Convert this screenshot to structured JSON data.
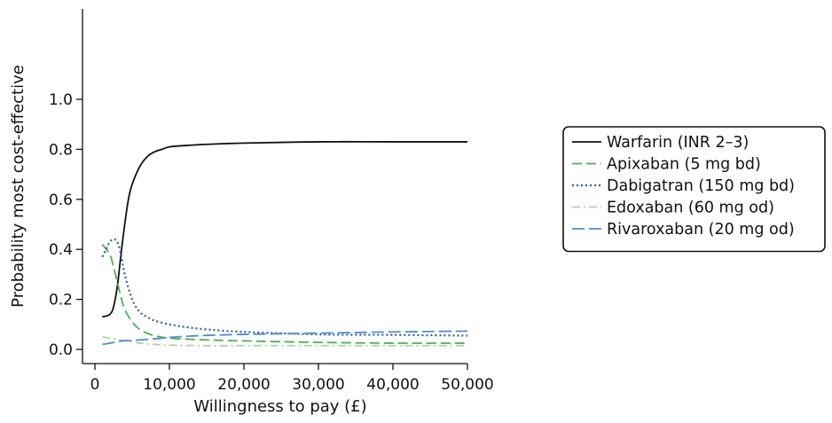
{
  "chart_data": {
    "type": "line",
    "xlabel": "Willingness to pay (£)",
    "ylabel": "Probability most cost-effective",
    "xlim": [
      0,
      50000
    ],
    "ylim": [
      0,
      1.0
    ],
    "x_ticks": [
      0,
      10000,
      20000,
      30000,
      40000,
      50000
    ],
    "x_tick_labels": [
      "0",
      "10,000",
      "20,000",
      "30,000",
      "40,000",
      "50,000"
    ],
    "y_ticks": [
      0,
      0.2,
      0.4,
      0.6,
      0.8,
      1.0
    ],
    "y_tick_labels": [
      "0.0",
      "0.2",
      "0.4",
      "0.6",
      "0.8",
      "1.0"
    ],
    "grid": false,
    "legend_position": "right",
    "series": [
      {
        "name": "Warfarin (INR 2–3)",
        "color": "#111111",
        "dash": "solid",
        "x": [
          1000,
          2000,
          2500,
          3000,
          3500,
          4000,
          4500,
          5000,
          6000,
          7000,
          8000,
          9000,
          10000,
          12000,
          15000,
          20000,
          30000,
          40000,
          50000
        ],
        "y": [
          0.13,
          0.14,
          0.17,
          0.25,
          0.38,
          0.5,
          0.6,
          0.66,
          0.73,
          0.77,
          0.79,
          0.8,
          0.81,
          0.815,
          0.82,
          0.825,
          0.83,
          0.83,
          0.83
        ]
      },
      {
        "name": "Apixaban (5 mg bd)",
        "color": "#4caf50",
        "dash": "long-dash",
        "x": [
          1000,
          2000,
          2500,
          3000,
          3500,
          4000,
          5000,
          6000,
          7000,
          8000,
          10000,
          15000,
          20000,
          30000,
          40000,
          50000
        ],
        "y": [
          0.42,
          0.38,
          0.33,
          0.27,
          0.21,
          0.16,
          0.11,
          0.08,
          0.065,
          0.055,
          0.045,
          0.038,
          0.034,
          0.028,
          0.025,
          0.025
        ]
      },
      {
        "name": "Dabigatran (150 mg bd)",
        "color": "#2a5db0",
        "dash": "dotted",
        "x": [
          1000,
          1500,
          2000,
          2500,
          3000,
          3500,
          4000,
          5000,
          6000,
          7000,
          8000,
          10000,
          12000,
          15000,
          20000,
          30000,
          40000,
          50000
        ],
        "y": [
          0.37,
          0.4,
          0.43,
          0.44,
          0.43,
          0.38,
          0.3,
          0.2,
          0.15,
          0.13,
          0.115,
          0.1,
          0.09,
          0.08,
          0.07,
          0.06,
          0.058,
          0.055
        ]
      },
      {
        "name": "Edoxaban (60 mg od)",
        "color": "#a8d5a0",
        "dash": "dash-dot",
        "x": [
          1000,
          2000,
          3000,
          4000,
          5000,
          6000,
          8000,
          10000,
          15000,
          20000,
          30000,
          40000,
          50000
        ],
        "y": [
          0.05,
          0.045,
          0.04,
          0.035,
          0.03,
          0.025,
          0.02,
          0.017,
          0.015,
          0.015,
          0.015,
          0.015,
          0.015
        ]
      },
      {
        "name": "Rivaroxaban (20 mg od)",
        "color": "#4a8fd4",
        "dash": "dash",
        "x": [
          1000,
          2000,
          3000,
          4000,
          5000,
          6000,
          8000,
          10000,
          12000,
          15000,
          20000,
          30000,
          40000,
          50000
        ],
        "y": [
          0.02,
          0.025,
          0.03,
          0.035,
          0.035,
          0.038,
          0.042,
          0.048,
          0.052,
          0.056,
          0.06,
          0.065,
          0.07,
          0.073
        ]
      }
    ]
  }
}
